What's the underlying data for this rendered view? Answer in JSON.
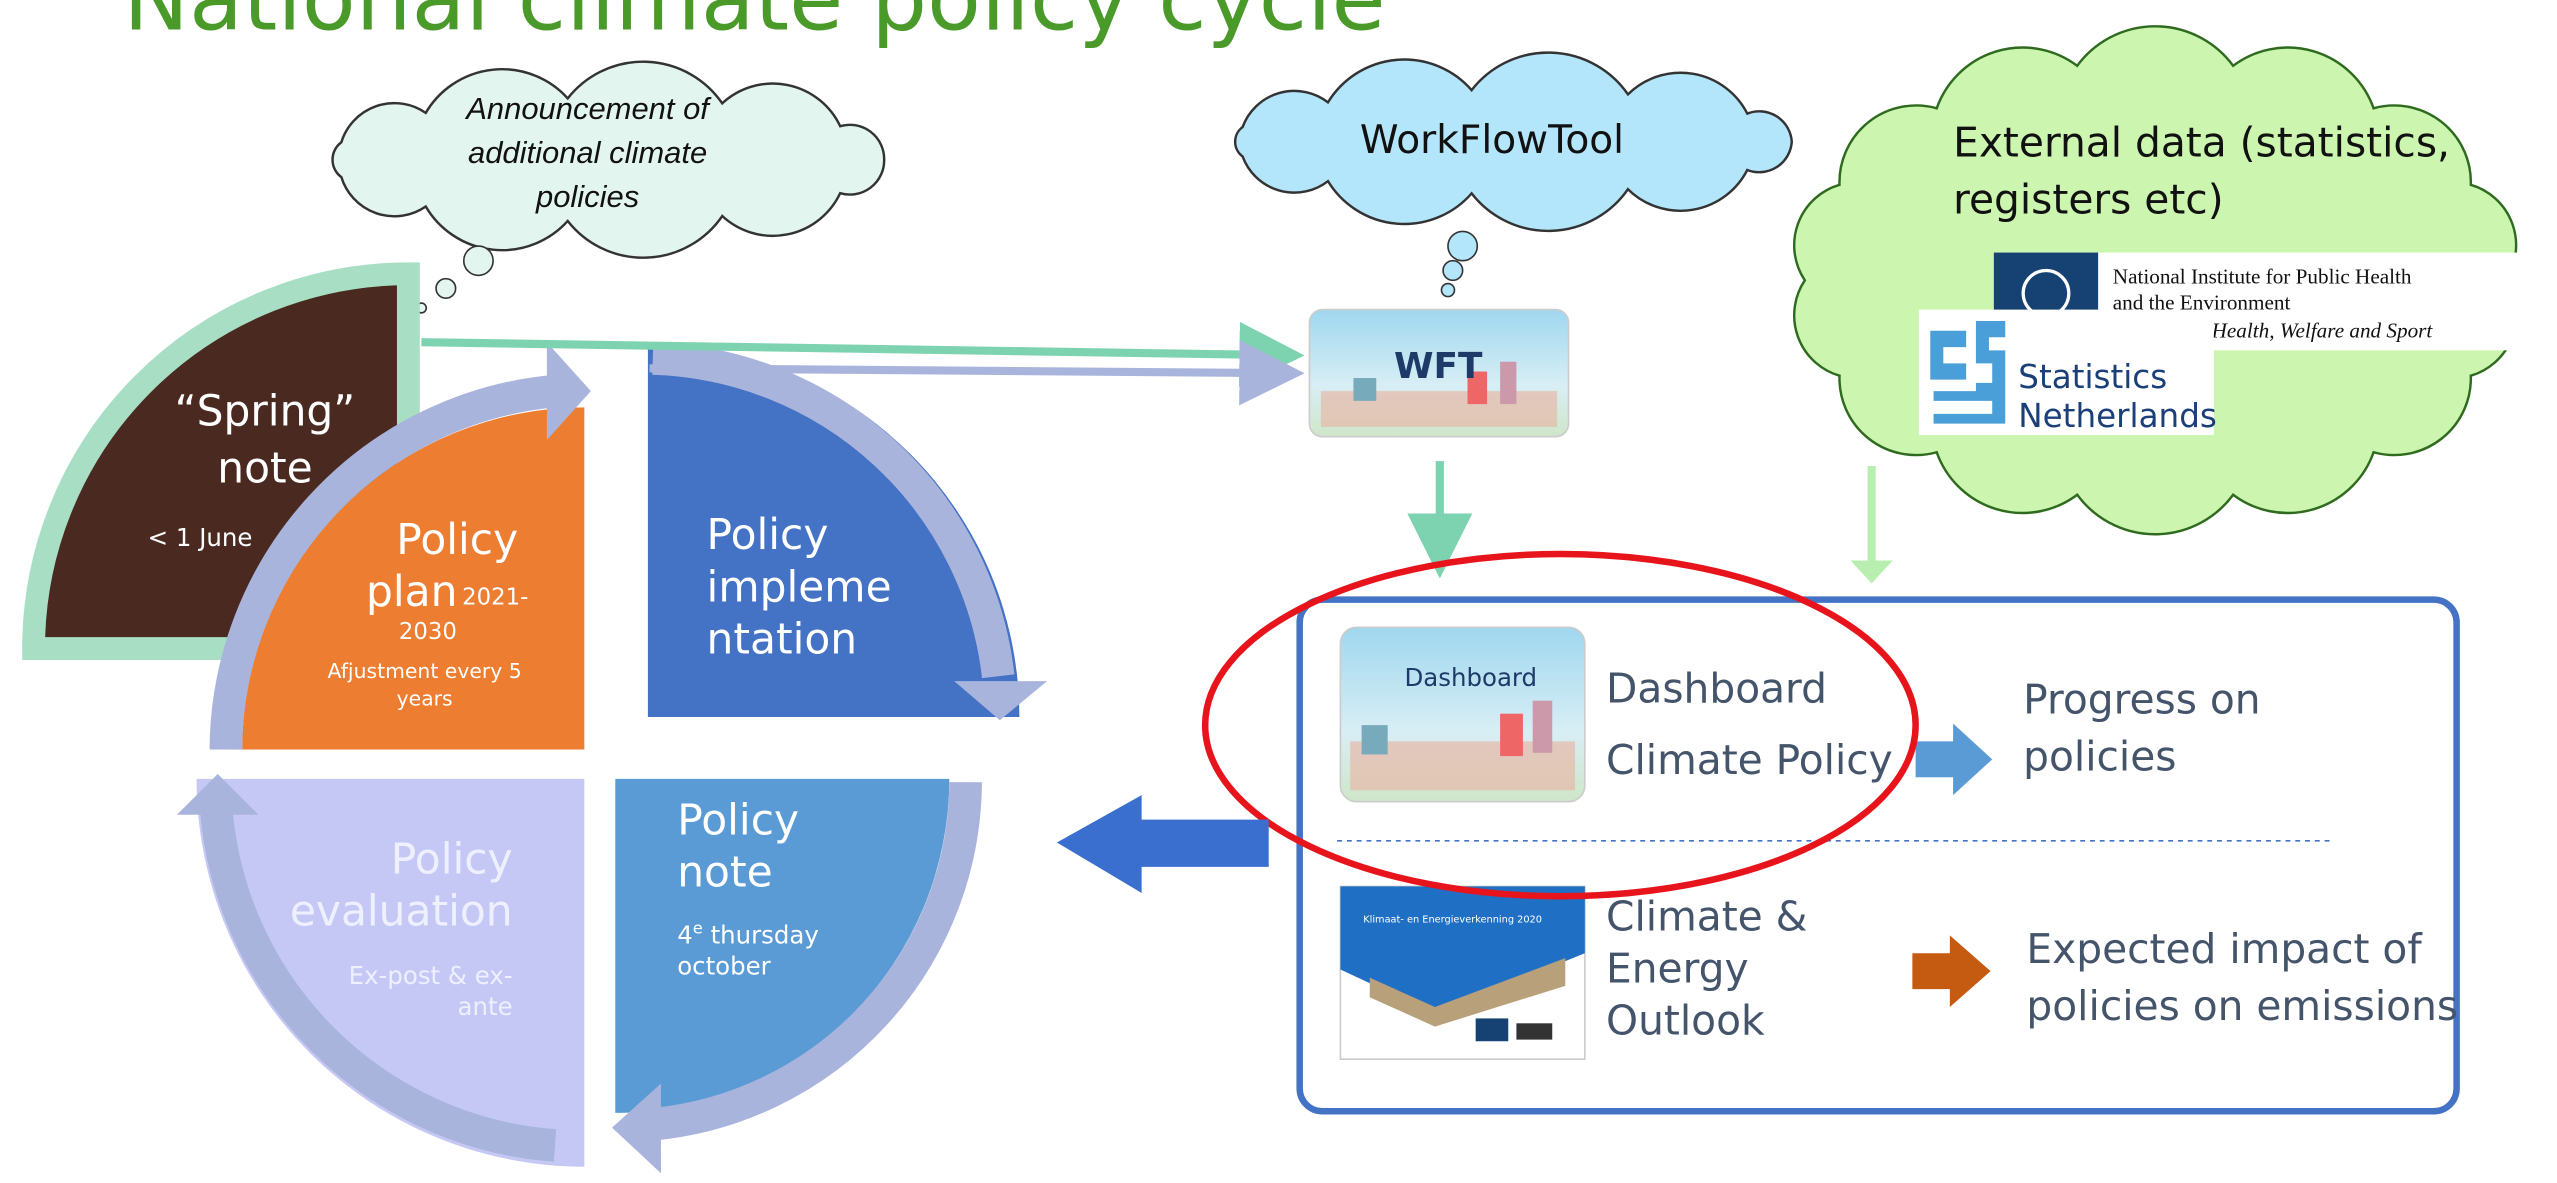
{
  "title": "National climate policy cycle",
  "clouds": {
    "announcement": {
      "lines": [
        "Announcement of",
        "additional climate",
        "policies"
      ]
    },
    "workflowtool": {
      "label": "WorkFlowTool"
    },
    "external_data": {
      "lines": [
        "External data (statistics,",
        "registers etc)"
      ],
      "logos": {
        "rivm": [
          "National Institute for Public Health",
          "and the Environment",
          "Ministry of Health, Welfare and Sport"
        ],
        "cbs": [
          "Statistics",
          "Netherlands"
        ]
      }
    }
  },
  "cycle": {
    "spring_note": {
      "lines": [
        "“Spring”",
        "note"
      ],
      "date": "< 1 June"
    },
    "policy_plan": {
      "lines": [
        "Policy",
        "plan"
      ],
      "period": [
        "2021-",
        "2030"
      ],
      "note": [
        "Afjustment every 5",
        "years"
      ]
    },
    "policy_implementation": {
      "lines": [
        "Policy",
        "impleme",
        "ntation"
      ]
    },
    "policy_evaluation": {
      "lines": [
        "Policy",
        "evaluation"
      ],
      "note": [
        "Ex-post & ex-",
        "ante"
      ]
    },
    "policy_note": {
      "lines": [
        "Policy",
        "note"
      ],
      "date": {
        "day": "4",
        "suffix": "e",
        "rest": " thursday",
        "month": "october"
      }
    }
  },
  "tools": {
    "wft": "WFT",
    "dashboard_thumb": "Dashboard",
    "kev_thumb": "Klimaat- en Energieverkenning 2020"
  },
  "outputs": [
    {
      "product": [
        "Dashboard",
        "Climate Policy"
      ],
      "result": [
        "Progress on",
        "policies"
      ]
    },
    {
      "product": [
        "Climate &",
        "Energy",
        "Outlook"
      ],
      "result": [
        "Expected impact of",
        "policies on emissions"
      ]
    }
  ]
}
